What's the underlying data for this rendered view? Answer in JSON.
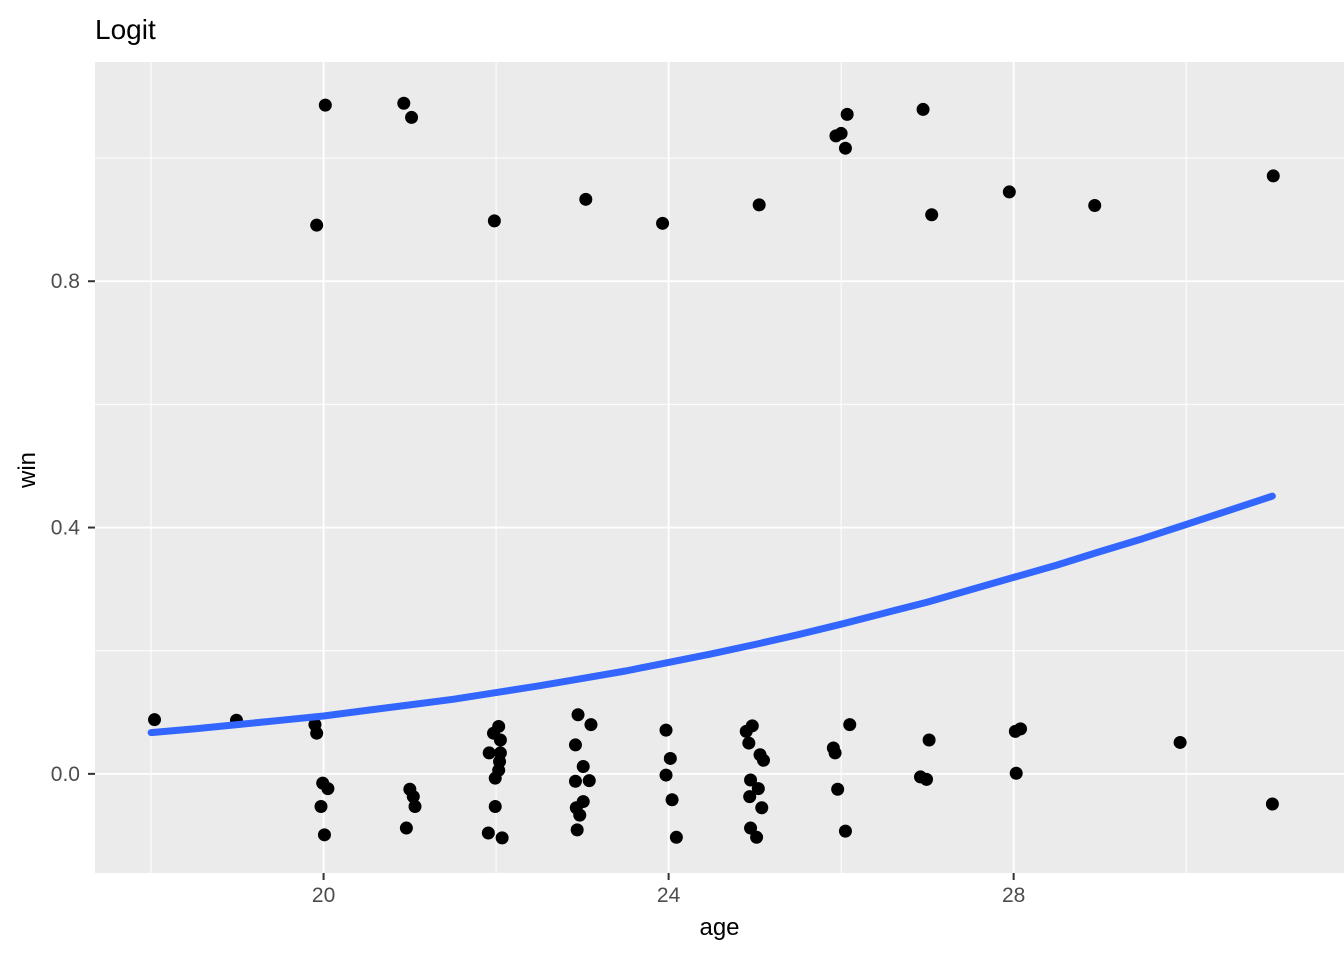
{
  "chart_data": {
    "type": "scatter",
    "title": "Logit",
    "xlabel": "age",
    "ylabel": "win",
    "xlim": [
      17.35,
      31.83
    ],
    "ylim": [
      -0.161,
      1.156
    ],
    "grid": true,
    "legend": false,
    "x_major_ticks": [
      20,
      24,
      28
    ],
    "x_tick_labels": [
      "20",
      "24",
      "28"
    ],
    "x_minor_breaks": [
      18,
      22,
      26,
      30
    ],
    "y_major_ticks": [
      0.0,
      0.4,
      0.8
    ],
    "y_tick_labels": [
      "0.0",
      "0.4",
      "0.8"
    ],
    "y_minor_breaks": [
      0.2,
      0.6,
      1.0
    ],
    "points": [
      [
        19.92,
        0.891
      ],
      [
        20.02,
        1.086
      ],
      [
        20.93,
        1.089
      ],
      [
        21.02,
        1.066
      ],
      [
        21.98,
        0.898
      ],
      [
        23.04,
        0.933
      ],
      [
        23.93,
        0.894
      ],
      [
        25.05,
        0.924
      ],
      [
        25.94,
        1.036
      ],
      [
        26.0,
        1.04
      ],
      [
        26.07,
        1.071
      ],
      [
        26.05,
        1.016
      ],
      [
        26.95,
        1.079
      ],
      [
        27.05,
        0.908
      ],
      [
        27.95,
        0.945
      ],
      [
        28.94,
        0.923
      ],
      [
        31.01,
        0.971
      ],
      [
        18.04,
        0.088
      ],
      [
        18.99,
        0.087
      ],
      [
        19.9,
        0.08
      ],
      [
        19.92,
        0.066
      ],
      [
        19.99,
        -0.015
      ],
      [
        20.05,
        -0.024
      ],
      [
        19.97,
        -0.053
      ],
      [
        20.01,
        -0.099
      ],
      [
        21.0,
        -0.025
      ],
      [
        21.04,
        -0.037
      ],
      [
        21.06,
        -0.053
      ],
      [
        20.96,
        -0.088
      ],
      [
        22.03,
        0.077
      ],
      [
        21.97,
        0.066
      ],
      [
        22.05,
        0.055
      ],
      [
        21.92,
        0.034
      ],
      [
        22.05,
        0.034
      ],
      [
        22.04,
        0.02
      ],
      [
        22.03,
        0.006
      ],
      [
        21.99,
        -0.007
      ],
      [
        21.99,
        -0.053
      ],
      [
        21.91,
        -0.096
      ],
      [
        22.07,
        -0.104
      ],
      [
        22.95,
        0.096
      ],
      [
        23.1,
        0.08
      ],
      [
        22.92,
        0.047
      ],
      [
        23.01,
        0.012
      ],
      [
        22.92,
        -0.012
      ],
      [
        23.08,
        -0.011
      ],
      [
        23.01,
        -0.045
      ],
      [
        22.93,
        -0.055
      ],
      [
        22.97,
        -0.067
      ],
      [
        22.94,
        -0.091
      ],
      [
        23.97,
        0.071
      ],
      [
        24.02,
        0.025
      ],
      [
        23.97,
        -0.002
      ],
      [
        24.04,
        -0.042
      ],
      [
        24.09,
        -0.103
      ],
      [
        24.97,
        0.078
      ],
      [
        24.9,
        0.069
      ],
      [
        24.93,
        0.05
      ],
      [
        25.06,
        0.031
      ],
      [
        25.1,
        0.022
      ],
      [
        24.95,
        -0.01
      ],
      [
        25.04,
        -0.024
      ],
      [
        24.94,
        -0.037
      ],
      [
        25.08,
        -0.055
      ],
      [
        24.95,
        -0.088
      ],
      [
        25.02,
        -0.103
      ],
      [
        26.1,
        0.08
      ],
      [
        25.91,
        0.042
      ],
      [
        25.93,
        0.034
      ],
      [
        25.96,
        -0.025
      ],
      [
        26.05,
        -0.093
      ],
      [
        27.02,
        0.055
      ],
      [
        26.92,
        -0.005
      ],
      [
        26.99,
        -0.009
      ],
      [
        28.02,
        0.069
      ],
      [
        28.08,
        0.073
      ],
      [
        28.03,
        0.001
      ],
      [
        29.93,
        0.051
      ],
      [
        31.0,
        -0.049
      ]
    ],
    "smooth_curve": {
      "model": "logistic",
      "intercept": -6.01,
      "slope": 0.1875,
      "x": [
        18,
        18.5,
        19,
        19.5,
        20,
        20.5,
        21,
        21.5,
        22,
        22.5,
        23,
        23.5,
        24,
        24.5,
        25,
        25.5,
        26,
        26.5,
        27,
        27.5,
        28,
        28.5,
        29,
        29.5,
        30,
        30.5,
        31
      ],
      "y": [
        0.067,
        0.073,
        0.08,
        0.087,
        0.094,
        0.103,
        0.112,
        0.121,
        0.132,
        0.143,
        0.155,
        0.167,
        0.181,
        0.195,
        0.21,
        0.226,
        0.243,
        0.261,
        0.279,
        0.299,
        0.319,
        0.339,
        0.361,
        0.382,
        0.405,
        0.428,
        0.451
      ]
    },
    "colors": {
      "panel_background": "#EBEBEB",
      "gridline": "#FFFFFF",
      "point": "#000000",
      "curve": "#3366FF",
      "tick_label": "#4D4D4D",
      "tick_mark": "#333333",
      "title_text": "#000000",
      "figure_background": "#FFFFFF"
    }
  }
}
